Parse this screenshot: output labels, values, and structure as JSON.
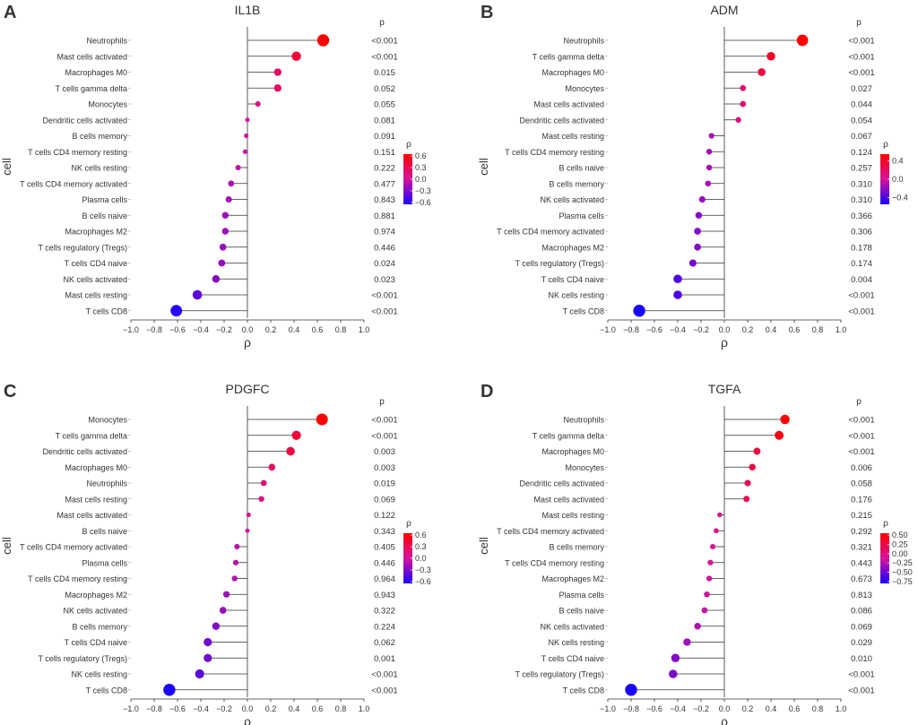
{
  "axis": {
    "xlabel": "ρ",
    "ylabel": "cell",
    "p_header": "p",
    "legend_title": "ρ",
    "xlim": [
      -1.0,
      1.0
    ],
    "xticks": [
      "−1.0",
      "−0.8",
      "−0.6",
      "−0.4",
      "−0.2",
      "0.0",
      "0.2",
      "0.4",
      "0.6",
      "0.8",
      "1.0"
    ],
    "xtick_values": [
      -1.0,
      -0.8,
      -0.6,
      -0.4,
      -0.2,
      0.0,
      0.2,
      0.4,
      0.6,
      0.8,
      1.0
    ]
  },
  "colors": {
    "high": "#ff0000",
    "mid": "#d4149c",
    "low": "#1a00ff",
    "stem": "#333333"
  },
  "chart_data": [
    {
      "type": "lollipop",
      "panel_label": "A",
      "title": "IL1B",
      "color_range": [
        -0.65,
        0.65
      ],
      "legend_ticks": [
        {
          "label": "0.6",
          "value": 0.6
        },
        {
          "label": "0.3",
          "value": 0.3
        },
        {
          "label": "0.0",
          "value": 0.0
        },
        {
          "label": "−0.3",
          "value": -0.3
        },
        {
          "label": "−0.6",
          "value": -0.6
        }
      ],
      "rows": [
        {
          "cell": "Neutrophils",
          "rho": 0.65,
          "p": "<0.001"
        },
        {
          "cell": "Mast cells activated",
          "rho": 0.42,
          "p": "<0.001"
        },
        {
          "cell": "Macrophages M0",
          "rho": 0.26,
          "p": "0.015"
        },
        {
          "cell": "T cells gamma delta",
          "rho": 0.26,
          "p": "0.052"
        },
        {
          "cell": "Monocytes",
          "rho": 0.09,
          "p": "0.055"
        },
        {
          "cell": "Dendritic cells activated",
          "rho": 0.0,
          "p": "0.081"
        },
        {
          "cell": "B cells memory",
          "rho": -0.01,
          "p": "0.091"
        },
        {
          "cell": "T cells CD4 memory resting",
          "rho": -0.02,
          "p": "0.151"
        },
        {
          "cell": "NK cells resting",
          "rho": -0.08,
          "p": "0.222"
        },
        {
          "cell": "T cells CD4 memory activated",
          "rho": -0.14,
          "p": "0.477"
        },
        {
          "cell": "Plasma cells",
          "rho": -0.16,
          "p": "0.843"
        },
        {
          "cell": "B cells naive",
          "rho": -0.19,
          "p": "0.881"
        },
        {
          "cell": "Macrophages M2",
          "rho": -0.19,
          "p": "0.974"
        },
        {
          "cell": "T cells regulatory (Tregs)",
          "rho": -0.21,
          "p": "0.446"
        },
        {
          "cell": "T cells CD4 naive",
          "rho": -0.22,
          "p": "0.024"
        },
        {
          "cell": "NK cells activated",
          "rho": -0.27,
          "p": "0.023"
        },
        {
          "cell": "Mast cells resting",
          "rho": -0.43,
          "p": "<0.001"
        },
        {
          "cell": "T cells CD8",
          "rho": -0.61,
          "p": "<0.001"
        }
      ]
    },
    {
      "type": "lollipop",
      "panel_label": "B",
      "title": "ADM",
      "color_range": [
        -0.55,
        0.55
      ],
      "legend_ticks": [
        {
          "label": "0.4",
          "value": 0.4
        },
        {
          "label": "0.0",
          "value": 0.0
        },
        {
          "label": "−0.4",
          "value": -0.4
        }
      ],
      "rows": [
        {
          "cell": "Neutrophils",
          "rho": 0.67,
          "p": "<0.001"
        },
        {
          "cell": "T cells gamma delta",
          "rho": 0.4,
          "p": "<0.001"
        },
        {
          "cell": "Macrophages M0",
          "rho": 0.32,
          "p": "<0.001"
        },
        {
          "cell": "Monocytes",
          "rho": 0.16,
          "p": "0.027"
        },
        {
          "cell": "Mast cells activated",
          "rho": 0.16,
          "p": "0.044"
        },
        {
          "cell": "Dendritic cells activated",
          "rho": 0.12,
          "p": "0.054"
        },
        {
          "cell": "Mast cells resting",
          "rho": -0.11,
          "p": "0.067"
        },
        {
          "cell": "T cells CD4 memory resting",
          "rho": -0.13,
          "p": "0.124"
        },
        {
          "cell": "B cells naive",
          "rho": -0.13,
          "p": "0.257"
        },
        {
          "cell": "B cells memory",
          "rho": -0.14,
          "p": "0.310"
        },
        {
          "cell": "NK cells activated",
          "rho": -0.19,
          "p": "0.310"
        },
        {
          "cell": "Plasma cells",
          "rho": -0.22,
          "p": "0.366"
        },
        {
          "cell": "T cells CD4 memory activated",
          "rho": -0.23,
          "p": "0.306"
        },
        {
          "cell": "Macrophages M2",
          "rho": -0.23,
          "p": "0.178"
        },
        {
          "cell": "T cells regulatory (Tregs)",
          "rho": -0.27,
          "p": "0.174"
        },
        {
          "cell": "T cells CD4 naive",
          "rho": -0.4,
          "p": "0.004"
        },
        {
          "cell": "NK cells resting",
          "rho": -0.4,
          "p": "<0.001"
        },
        {
          "cell": "T cells CD8",
          "rho": -0.73,
          "p": "<0.001"
        }
      ]
    },
    {
      "type": "lollipop",
      "panel_label": "C",
      "title": "PDGFC",
      "color_range": [
        -0.65,
        0.65
      ],
      "legend_ticks": [
        {
          "label": "0.6",
          "value": 0.6
        },
        {
          "label": "0.3",
          "value": 0.3
        },
        {
          "label": "0.0",
          "value": 0.0
        },
        {
          "label": "−0.3",
          "value": -0.3
        },
        {
          "label": "−0.6",
          "value": -0.6
        }
      ],
      "rows": [
        {
          "cell": "Monocytes",
          "rho": 0.64,
          "p": "<0.001"
        },
        {
          "cell": "T cells gamma delta",
          "rho": 0.42,
          "p": "<0.001"
        },
        {
          "cell": "Dendritic cells activated",
          "rho": 0.37,
          "p": "0.003"
        },
        {
          "cell": "Macrophages M0",
          "rho": 0.21,
          "p": "0.003"
        },
        {
          "cell": "Neutrophils",
          "rho": 0.14,
          "p": "0.019"
        },
        {
          "cell": "Mast cells resting",
          "rho": 0.12,
          "p": "0.069"
        },
        {
          "cell": "Mast cells activated",
          "rho": 0.01,
          "p": "0.122"
        },
        {
          "cell": "B cells naive",
          "rho": 0.0,
          "p": "0.343"
        },
        {
          "cell": "T cells CD4 memory activated",
          "rho": -0.09,
          "p": "0.405"
        },
        {
          "cell": "Plasma cells",
          "rho": -0.1,
          "p": "0.446"
        },
        {
          "cell": "T cells CD4 memory resting",
          "rho": -0.11,
          "p": "0.964"
        },
        {
          "cell": "Macrophages M2",
          "rho": -0.18,
          "p": "0.943"
        },
        {
          "cell": "NK cells activated",
          "rho": -0.21,
          "p": "0.322"
        },
        {
          "cell": "B cells memory",
          "rho": -0.27,
          "p": "0.224"
        },
        {
          "cell": "T cells CD4 naive",
          "rho": -0.34,
          "p": "0.062"
        },
        {
          "cell": "T cells regulatory (Tregs)",
          "rho": -0.34,
          "p": "0.001"
        },
        {
          "cell": "NK cells resting",
          "rho": -0.41,
          "p": "<0.001"
        },
        {
          "cell": "T cells CD8",
          "rho": -0.67,
          "p": "<0.001"
        }
      ]
    },
    {
      "type": "lollipop",
      "panel_label": "D",
      "title": "TGFA",
      "color_range": [
        -0.8,
        0.55
      ],
      "legend_ticks": [
        {
          "label": "0.50",
          "value": 0.5
        },
        {
          "label": "0.25",
          "value": 0.25
        },
        {
          "label": "0.00",
          "value": 0.0
        },
        {
          "label": "−0.25",
          "value": -0.25
        },
        {
          "label": "−0.50",
          "value": -0.5
        },
        {
          "label": "−0.75",
          "value": -0.75
        }
      ],
      "rows": [
        {
          "cell": "Neutrophils",
          "rho": 0.52,
          "p": "<0.001"
        },
        {
          "cell": "T cells gamma delta",
          "rho": 0.47,
          "p": "<0.001"
        },
        {
          "cell": "Macrophages M0",
          "rho": 0.28,
          "p": "<0.001"
        },
        {
          "cell": "Monocytes",
          "rho": 0.24,
          "p": "0.006"
        },
        {
          "cell": "Dendritic cells activated",
          "rho": 0.2,
          "p": "0.058"
        },
        {
          "cell": "Mast cells activated",
          "rho": 0.19,
          "p": "0.176"
        },
        {
          "cell": "Mast cells resting",
          "rho": -0.04,
          "p": "0.215"
        },
        {
          "cell": "T cells CD4 memory activated",
          "rho": -0.07,
          "p": "0.292"
        },
        {
          "cell": "B cells memory",
          "rho": -0.1,
          "p": "0.321"
        },
        {
          "cell": "T cells CD4 memory resting",
          "rho": -0.12,
          "p": "0.443"
        },
        {
          "cell": "Macrophages M2",
          "rho": -0.13,
          "p": "0.673"
        },
        {
          "cell": "Plasma cells",
          "rho": -0.15,
          "p": "0.813"
        },
        {
          "cell": "B cells naive",
          "rho": -0.17,
          "p": "0.086"
        },
        {
          "cell": "NK cells activated",
          "rho": -0.23,
          "p": "0.069"
        },
        {
          "cell": "NK cells resting",
          "rho": -0.32,
          "p": "0.029"
        },
        {
          "cell": "T cells CD4 naive",
          "rho": -0.42,
          "p": "0.010"
        },
        {
          "cell": "T cells regulatory (Tregs)",
          "rho": -0.44,
          "p": "<0.001"
        },
        {
          "cell": "T cells CD8",
          "rho": -0.8,
          "p": "<0.001"
        }
      ]
    }
  ]
}
